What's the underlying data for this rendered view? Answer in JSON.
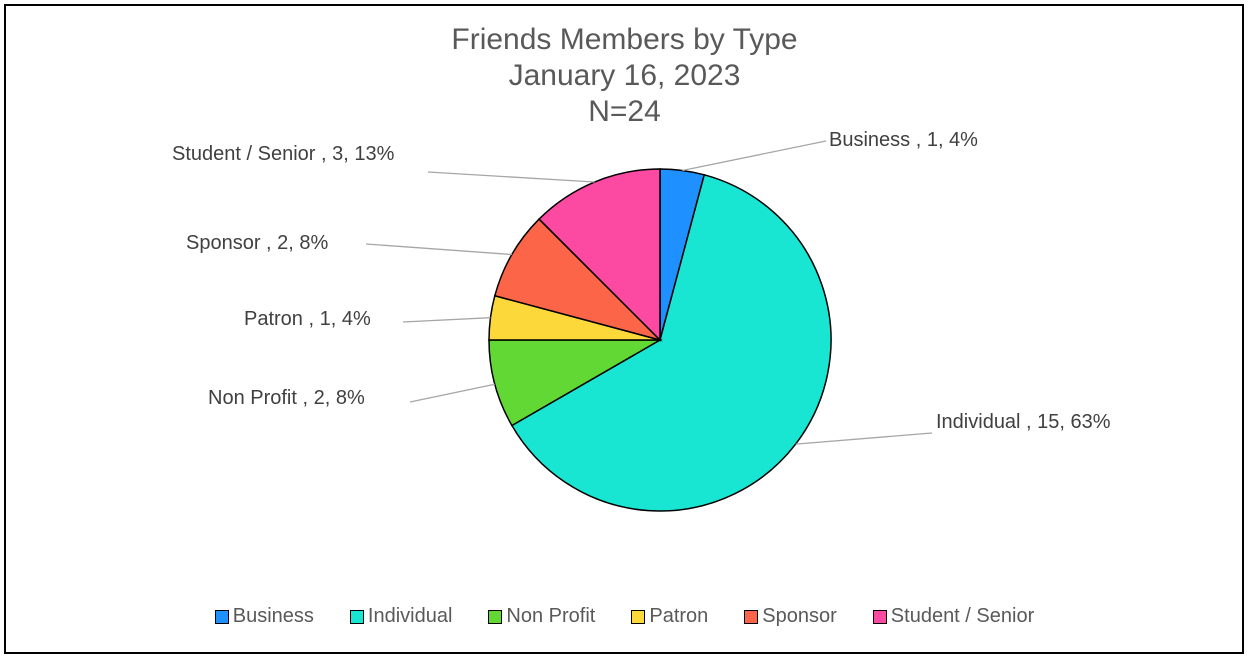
{
  "chart_data": {
    "type": "pie",
    "title_lines": [
      "Friends Members by Type",
      "January 16, 2023",
      "N=24"
    ],
    "slices": [
      {
        "name": "Business",
        "value": 1,
        "percent": "4%",
        "label": "Business , 1, 4%",
        "color": "#1e90ff"
      },
      {
        "name": "Individual",
        "value": 15,
        "percent": "63%",
        "label": "Individual , 15, 63%",
        "color": "#19e6d2"
      },
      {
        "name": "Non Profit",
        "value": 2,
        "percent": "8%",
        "label": "Non Profit , 2, 8%",
        "color": "#62d834"
      },
      {
        "name": "Patron",
        "value": 1,
        "percent": "4%",
        "label": "Patron , 1, 4%",
        "color": "#fdd83a"
      },
      {
        "name": "Sponsor",
        "value": 2,
        "percent": "8%",
        "label": "Sponsor , 2, 8%",
        "color": "#fd6548"
      },
      {
        "name": "Student / Senior",
        "value": 3,
        "percent": "13%",
        "label": "Student / Senior , 3, 13%",
        "color": "#fc4aa3"
      }
    ],
    "legend_position": "bottom",
    "legend": [
      "Business",
      "Individual",
      "Non Profit",
      "Patron",
      "Sponsor",
      "Student / Senior"
    ]
  }
}
